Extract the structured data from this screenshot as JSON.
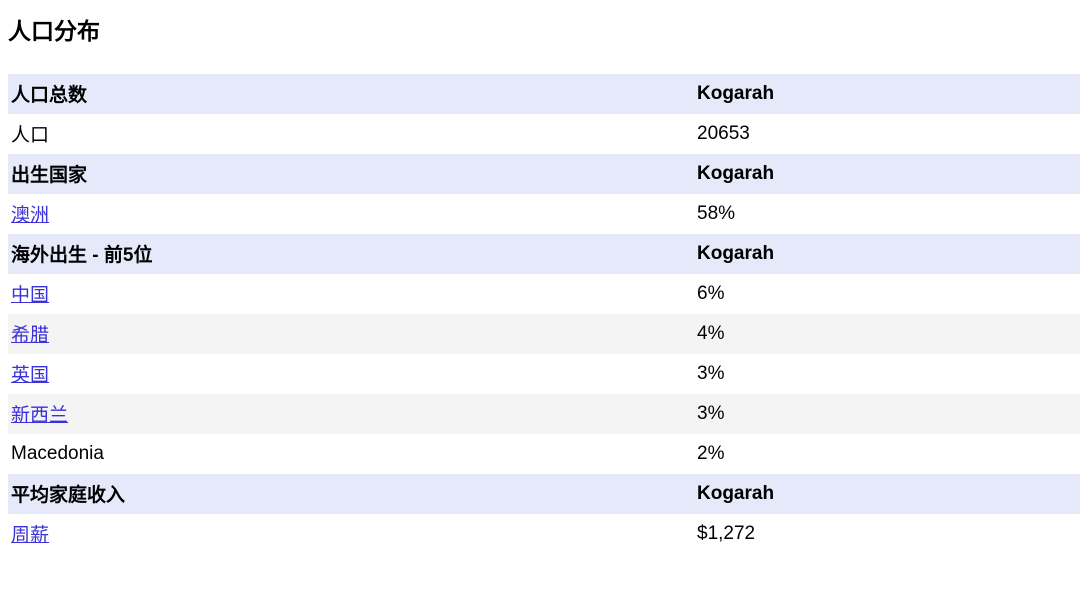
{
  "page": {
    "title": "人口分布"
  },
  "colors": {
    "header_row_bg": "#e6e9fa",
    "stripe_row_bg": "#f4f4f4",
    "link_color": "#3a31d8",
    "text_color": "#000000",
    "page_bg": "#ffffff"
  },
  "table": {
    "location_column_header": "Kogarah",
    "rows": [
      {
        "type": "header",
        "label": "人口总数",
        "value": "Kogarah",
        "link": false,
        "shaded": false
      },
      {
        "type": "data",
        "label": "人口",
        "value": "20653",
        "link": false,
        "shaded": false
      },
      {
        "type": "header",
        "label": "出生国家",
        "value": "Kogarah",
        "link": false,
        "shaded": false
      },
      {
        "type": "data",
        "label": "澳洲",
        "value": "58%",
        "link": true,
        "shaded": false
      },
      {
        "type": "header",
        "label": "海外出生 - 前5位",
        "value": "Kogarah",
        "link": false,
        "shaded": false
      },
      {
        "type": "data",
        "label": "中国",
        "value": "6%",
        "link": true,
        "shaded": false
      },
      {
        "type": "data",
        "label": "希腊",
        "value": "4%",
        "link": true,
        "shaded": true
      },
      {
        "type": "data",
        "label": "英国",
        "value": "3%",
        "link": true,
        "shaded": false
      },
      {
        "type": "data",
        "label": "新西兰",
        "value": "3%",
        "link": true,
        "shaded": true
      },
      {
        "type": "data",
        "label": "Macedonia",
        "value": "2%",
        "link": false,
        "shaded": false
      },
      {
        "type": "header",
        "label": "平均家庭收入",
        "value": "Kogarah",
        "link": false,
        "shaded": false
      },
      {
        "type": "data",
        "label": "周薪",
        "value": "$1,272",
        "link": true,
        "shaded": false
      }
    ]
  }
}
